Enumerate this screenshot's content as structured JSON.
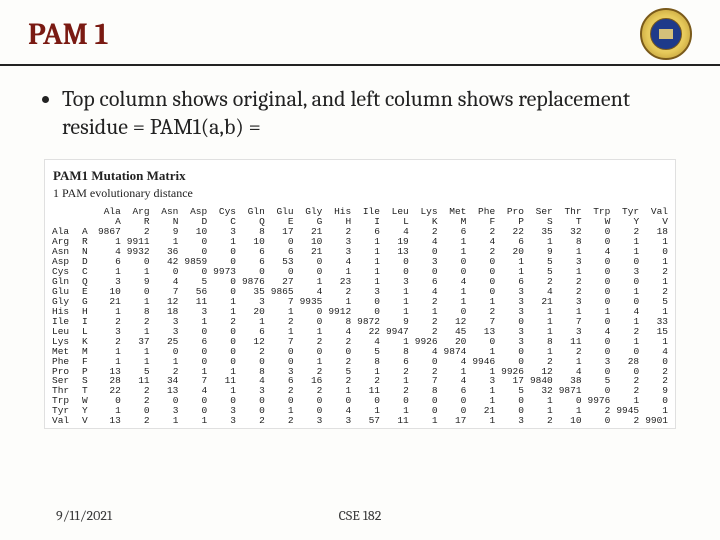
{
  "title": "PAM 1",
  "bullet": "Top column shows original, and left column shows replacement residue = PAM1(a,b) =",
  "matrix_title": "PAM1 Mutation Matrix",
  "matrix_sub": "1 PAM evolutionary distance",
  "footer_date": "9/11/2021",
  "footer_course": "CSE 182",
  "col_long": [
    "Ala",
    "Arg",
    "Asn",
    "Asp",
    "Cys",
    "Gln",
    "Glu",
    "Gly",
    "His",
    "Ile",
    "Leu",
    "Lys",
    "Met",
    "Phe",
    "Pro",
    "Ser",
    "Thr",
    "Trp",
    "Tyr",
    "Val"
  ],
  "col_short": [
    "A",
    "R",
    "N",
    "D",
    "C",
    "Q",
    "E",
    "G",
    "H",
    "I",
    "L",
    "K",
    "M",
    "F",
    "P",
    "S",
    "T",
    "W",
    "Y",
    "V"
  ],
  "rows": [
    {
      "long": "Ala",
      "short": "A",
      "v": [
        9867,
        2,
        9,
        10,
        3,
        8,
        17,
        21,
        2,
        6,
        4,
        2,
        6,
        2,
        22,
        35,
        32,
        0,
        2,
        18
      ]
    },
    {
      "long": "Arg",
      "short": "R",
      "v": [
        1,
        9911,
        1,
        0,
        1,
        10,
        0,
        10,
        3,
        1,
        19,
        4,
        1,
        4,
        6,
        1,
        8,
        0,
        1,
        1
      ]
    },
    {
      "long": "Asn",
      "short": "N",
      "v": [
        4,
        9932,
        36,
        0,
        0,
        6,
        6,
        21,
        3,
        1,
        13,
        0,
        1,
        2,
        20,
        9,
        1,
        4,
        1,
        0
      ]
    },
    {
      "long": "Asp",
      "short": "D",
      "v": [
        6,
        0,
        42,
        9859,
        0,
        6,
        53,
        0,
        4,
        1,
        0,
        3,
        0,
        0,
        1,
        5,
        3,
        0,
        0,
        1
      ]
    },
    {
      "long": "Cys",
      "short": "C",
      "v": [
        1,
        1,
        0,
        0,
        9973,
        0,
        0,
        0,
        1,
        1,
        0,
        0,
        0,
        0,
        1,
        5,
        1,
        0,
        3,
        2
      ]
    },
    {
      "long": "Gln",
      "short": "Q",
      "v": [
        3,
        9,
        4,
        5,
        0,
        9876,
        27,
        1,
        23,
        1,
        3,
        6,
        4,
        0,
        6,
        2,
        2,
        0,
        0,
        1
      ]
    },
    {
      "long": "Glu",
      "short": "E",
      "v": [
        10,
        0,
        7,
        56,
        0,
        35,
        9865,
        4,
        2,
        3,
        1,
        4,
        1,
        0,
        3,
        4,
        2,
        0,
        1,
        2
      ]
    },
    {
      "long": "Gly",
      "short": "G",
      "v": [
        21,
        1,
        12,
        11,
        1,
        3,
        7,
        9935,
        1,
        0,
        1,
        2,
        1,
        1,
        3,
        21,
        3,
        0,
        0,
        5
      ]
    },
    {
      "long": "His",
      "short": "H",
      "v": [
        1,
        8,
        18,
        3,
        1,
        20,
        1,
        0,
        9912,
        0,
        1,
        1,
        0,
        2,
        3,
        1,
        1,
        1,
        4,
        1
      ]
    },
    {
      "long": "Ile",
      "short": "I",
      "v": [
        2,
        2,
        3,
        1,
        2,
        1,
        2,
        0,
        8,
        9872,
        9,
        2,
        12,
        7,
        0,
        1,
        7,
        0,
        1,
        33
      ]
    },
    {
      "long": "Leu",
      "short": "L",
      "v": [
        3,
        1,
        3,
        0,
        0,
        6,
        1,
        1,
        4,
        22,
        9947,
        2,
        45,
        13,
        3,
        1,
        3,
        4,
        2,
        15
      ]
    },
    {
      "long": "Lys",
      "short": "K",
      "v": [
        2,
        37,
        25,
        6,
        0,
        12,
        7,
        2,
        2,
        4,
        1,
        9926,
        20,
        0,
        3,
        8,
        11,
        0,
        1,
        1
      ]
    },
    {
      "long": "Met",
      "short": "M",
      "v": [
        1,
        1,
        0,
        0,
        0,
        2,
        0,
        0,
        0,
        5,
        8,
        4,
        9874,
        1,
        0,
        1,
        2,
        0,
        0,
        4
      ]
    },
    {
      "long": "Phe",
      "short": "F",
      "v": [
        1,
        1,
        1,
        0,
        0,
        0,
        0,
        1,
        2,
        8,
        6,
        0,
        4,
        9946,
        0,
        2,
        1,
        3,
        28,
        0
      ]
    },
    {
      "long": "Pro",
      "short": "P",
      "v": [
        13,
        5,
        2,
        1,
        1,
        8,
        3,
        2,
        5,
        1,
        2,
        2,
        1,
        1,
        9926,
        12,
        4,
        0,
        0,
        2
      ]
    },
    {
      "long": "Ser",
      "short": "S",
      "v": [
        28,
        11,
        34,
        7,
        11,
        4,
        6,
        16,
        2,
        2,
        1,
        7,
        4,
        3,
        17,
        9840,
        38,
        5,
        2,
        2
      ]
    },
    {
      "long": "Thr",
      "short": "T",
      "v": [
        22,
        2,
        13,
        4,
        1,
        3,
        2,
        2,
        1,
        11,
        2,
        8,
        6,
        1,
        5,
        32,
        9871,
        0,
        2,
        9
      ]
    },
    {
      "long": "Trp",
      "short": "W",
      "v": [
        0,
        2,
        0,
        0,
        0,
        0,
        0,
        0,
        0,
        0,
        0,
        0,
        0,
        1,
        0,
        1,
        0,
        9976,
        1,
        0
      ]
    },
    {
      "long": "Tyr",
      "short": "Y",
      "v": [
        1,
        0,
        3,
        0,
        3,
        0,
        1,
        0,
        4,
        1,
        1,
        0,
        0,
        21,
        0,
        1,
        1,
        2,
        9945,
        1
      ]
    },
    {
      "long": "Val",
      "short": "V",
      "v": [
        13,
        2,
        1,
        1,
        3,
        2,
        2,
        3,
        3,
        57,
        11,
        1,
        17,
        1,
        3,
        2,
        10,
        0,
        2,
        9901
      ]
    }
  ]
}
